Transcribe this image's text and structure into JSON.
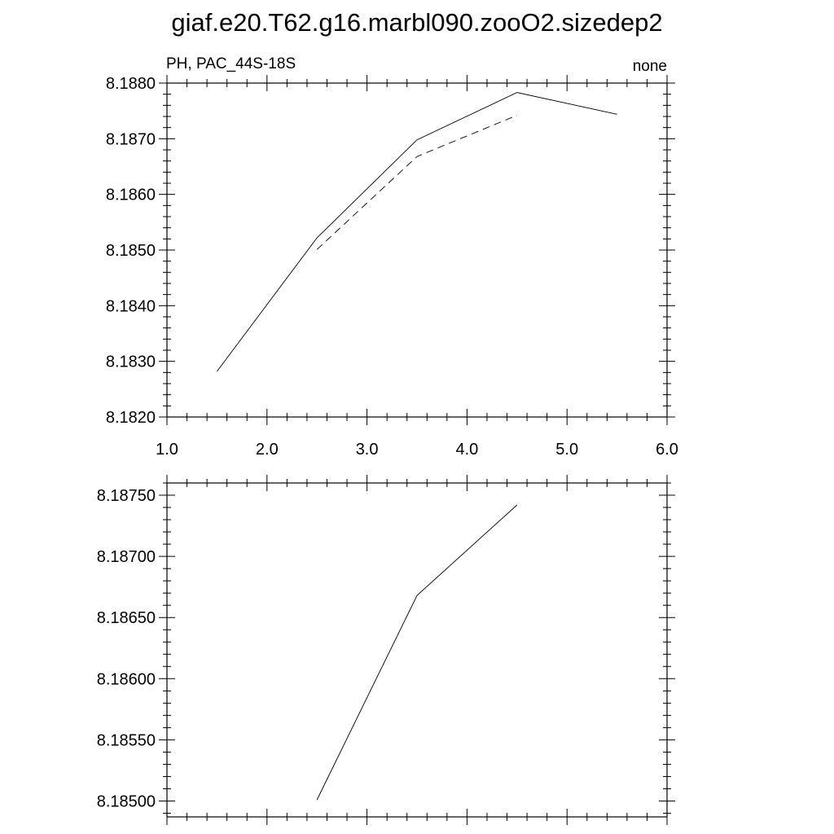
{
  "figure": {
    "title": "giaf.e20.T62.g16.marbl090.zooO2.sizedep2"
  },
  "chart_data": [
    {
      "type": "line",
      "left_label": "PH, PAC_44S-18S",
      "right_label": "none",
      "xlim": [
        1.0,
        6.0
      ],
      "ylim": [
        8.182,
        8.188
      ],
      "x_ticks": [
        1.0,
        2.0,
        3.0,
        4.0,
        5.0,
        6.0
      ],
      "x_tick_labels": [
        "1.0",
        "2.0",
        "3.0",
        "4.0",
        "5.0",
        "6.0"
      ],
      "y_ticks": [
        8.182,
        8.183,
        8.184,
        8.185,
        8.186,
        8.187,
        8.188
      ],
      "y_tick_labels": [
        "8.1820",
        "8.1830",
        "8.1840",
        "8.1850",
        "8.1860",
        "8.1870",
        "8.1880"
      ],
      "grid": false,
      "series": [
        {
          "style": "solid",
          "x": [
            1.5,
            2.5,
            3.5,
            4.5,
            5.5
          ],
          "y": [
            8.18282,
            8.18522,
            8.18698,
            8.18783,
            8.18744
          ]
        },
        {
          "style": "dashed",
          "x": [
            2.5,
            3.5,
            4.5
          ],
          "y": [
            8.18501,
            8.18668,
            8.18742
          ]
        }
      ]
    },
    {
      "type": "line",
      "xlim": [
        1.0,
        6.0
      ],
      "ylim": [
        8.18487,
        8.1876
      ],
      "x_ticks": [
        1.0,
        2.0,
        3.0,
        4.0,
        5.0,
        6.0
      ],
      "y_ticks": [
        8.185,
        8.1855,
        8.186,
        8.1865,
        8.187,
        8.1875
      ],
      "y_tick_labels": [
        "8.18500",
        "8.18550",
        "8.18600",
        "8.18650",
        "8.18700",
        "8.18750"
      ],
      "grid": false,
      "series": [
        {
          "style": "solid",
          "x": [
            2.5,
            3.5,
            4.5
          ],
          "y": [
            8.18501,
            8.18668,
            8.18742
          ]
        }
      ]
    }
  ]
}
